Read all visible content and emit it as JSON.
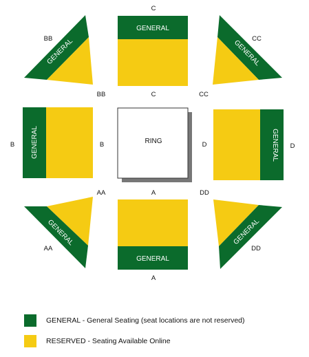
{
  "colors": {
    "general": "#0b6b2c",
    "reserved": "#f5cb13",
    "ring_fill": "#ffffff",
    "ring_shadow": "#777777",
    "text": "#111111"
  },
  "ring": {
    "label": "RING"
  },
  "general_label": "GENERAL",
  "sections": {
    "top": {
      "label_outer": "C",
      "label_inner": "C"
    },
    "bottom": {
      "label_outer": "A",
      "label_inner": "A"
    },
    "left": {
      "label_outer": "B",
      "label_inner": "B"
    },
    "right": {
      "label_outer": "D",
      "label_inner": "D"
    },
    "top_left": {
      "label_outer": "BB",
      "label_inner": "BB"
    },
    "top_right": {
      "label_outer": "CC",
      "label_inner": "CC"
    },
    "bottom_left": {
      "label_outer": "AA",
      "label_inner": "AA"
    },
    "bottom_right": {
      "label_outer": "DD",
      "label_inner": "DD"
    }
  },
  "legend": [
    {
      "swatch": "general",
      "text": "GENERAL - General Seating (seat locations are not reserved)"
    },
    {
      "swatch": "reserved",
      "text": "RESERVED - Seating Available Online"
    }
  ]
}
